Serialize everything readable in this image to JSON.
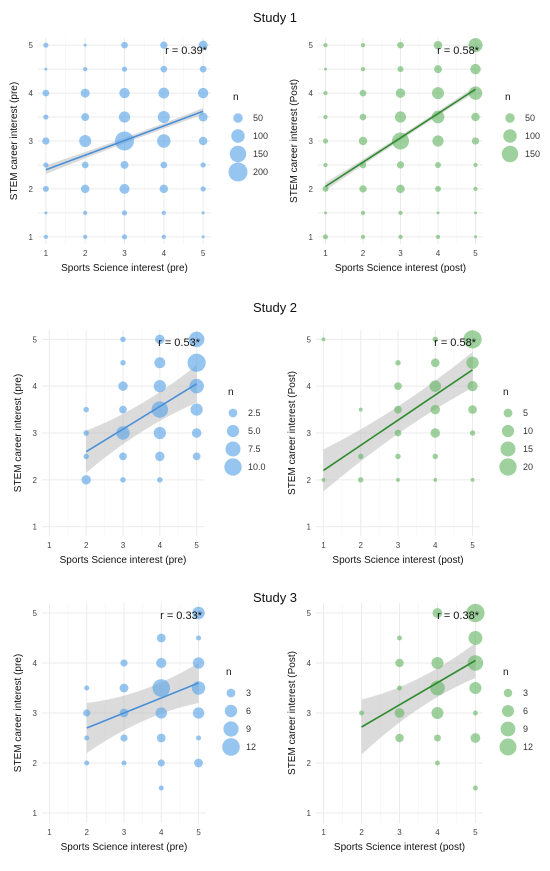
{
  "study_titles": [
    "Study 1",
    "Study 2",
    "Study 3"
  ],
  "chart_data": [
    {
      "type": "scatter",
      "study": "Study 1",
      "xlabel": "Sports Science interest (pre)",
      "ylabel": "STEM career interest (pre)",
      "annotation": "r = 0.39*",
      "color": "#5ea6e8",
      "line_color": "#4a90d9",
      "xticks": [
        1,
        2,
        3,
        4,
        5
      ],
      "yticks": [
        1,
        1.5,
        2,
        2.5,
        3,
        3.5,
        4,
        4.5,
        5
      ],
      "ytick_labels": [
        "1",
        "",
        "2",
        "",
        "3",
        "",
        "4",
        "",
        "5"
      ],
      "xlim": [
        0.8,
        5.2
      ],
      "ylim": [
        0.85,
        5.15
      ],
      "fit": {
        "x": [
          1,
          5
        ],
        "y": [
          2.4,
          3.62
        ],
        "ci": [
          0.09,
          0.07
        ]
      },
      "legend": {
        "title": "n",
        "values": [
          50,
          100,
          150,
          200
        ],
        "labels": [
          "50",
          "100",
          "150",
          "200"
        ],
        "max_n": 200
      },
      "points": [
        [
          1,
          1,
          10
        ],
        [
          1,
          1.5,
          5
        ],
        [
          1,
          2,
          20
        ],
        [
          1,
          2.5,
          15
        ],
        [
          1,
          3,
          30
        ],
        [
          1,
          3.5,
          15
        ],
        [
          1,
          4,
          25
        ],
        [
          1,
          4.5,
          5
        ],
        [
          1,
          5,
          15
        ],
        [
          2,
          1,
          10
        ],
        [
          2,
          1.5,
          10
        ],
        [
          2,
          2,
          40
        ],
        [
          2,
          2.5,
          25
        ],
        [
          2,
          3,
          80
        ],
        [
          2,
          3.5,
          35
        ],
        [
          2,
          4,
          45
        ],
        [
          2,
          4.5,
          10
        ],
        [
          2,
          5,
          5
        ],
        [
          3,
          1,
          15
        ],
        [
          3,
          1.5,
          15
        ],
        [
          3,
          2,
          55
        ],
        [
          3,
          2.5,
          35
        ],
        [
          3,
          3,
          200
        ],
        [
          3,
          3.5,
          70
        ],
        [
          3,
          4,
          60
        ],
        [
          3,
          4.5,
          15
        ],
        [
          3,
          5,
          25
        ],
        [
          4,
          1,
          10
        ],
        [
          4,
          1.5,
          10
        ],
        [
          4,
          2,
          40
        ],
        [
          4,
          2.5,
          25
        ],
        [
          4,
          3,
          100
        ],
        [
          4,
          3.5,
          80
        ],
        [
          4,
          4,
          65
        ],
        [
          4,
          4.5,
          25
        ],
        [
          4,
          5,
          30
        ],
        [
          5,
          1,
          5
        ],
        [
          5,
          1.5,
          5
        ],
        [
          5,
          2,
          15
        ],
        [
          5,
          2.5,
          15
        ],
        [
          5,
          3,
          40
        ],
        [
          5,
          3.5,
          45
        ],
        [
          5,
          4,
          60
        ],
        [
          5,
          4.5,
          25
        ],
        [
          5,
          5,
          45
        ]
      ]
    },
    {
      "type": "scatter",
      "study": "Study 1",
      "xlabel": "Sports Science interest (post)",
      "ylabel": "STEM career interest (Post)",
      "annotation": "r = 0.58*",
      "color": "#6cb86c",
      "line_color": "#2e8b2e",
      "xticks": [
        1,
        2,
        3,
        4,
        5
      ],
      "yticks": [
        1,
        1.5,
        2,
        2.5,
        3,
        3.5,
        4,
        4.5,
        5
      ],
      "ytick_labels": [
        "1",
        "",
        "2",
        "",
        "3",
        "",
        "4",
        "",
        "5"
      ],
      "xlim": [
        0.8,
        5.2
      ],
      "ylim": [
        0.85,
        5.15
      ],
      "fit": {
        "x": [
          1,
          5
        ],
        "y": [
          2.05,
          4.08
        ],
        "ci": [
          0.08,
          0.06
        ]
      },
      "legend": {
        "title": "n",
        "values": [
          50,
          100,
          150
        ],
        "labels": [
          "50",
          "100",
          "150"
        ],
        "max_n": 200
      },
      "points": [
        [
          1,
          1,
          15
        ],
        [
          1,
          1.5,
          5
        ],
        [
          1,
          2,
          20
        ],
        [
          1,
          2.5,
          10
        ],
        [
          1,
          3,
          15
        ],
        [
          1,
          3.5,
          10
        ],
        [
          1,
          4,
          10
        ],
        [
          1,
          4.5,
          5
        ],
        [
          1,
          5,
          10
        ],
        [
          2,
          1,
          10
        ],
        [
          2,
          1.5,
          10
        ],
        [
          2,
          2,
          30
        ],
        [
          2,
          2.5,
          25
        ],
        [
          2,
          3,
          40
        ],
        [
          2,
          3.5,
          25
        ],
        [
          2,
          4,
          25
        ],
        [
          2,
          4.5,
          10
        ],
        [
          2,
          5,
          10
        ],
        [
          3,
          1,
          10
        ],
        [
          3,
          1.5,
          10
        ],
        [
          3,
          2,
          40
        ],
        [
          3,
          2.5,
          30
        ],
        [
          3,
          3,
          160
        ],
        [
          3,
          3.5,
          70
        ],
        [
          3,
          4,
          50
        ],
        [
          3,
          4.5,
          20
        ],
        [
          3,
          5,
          25
        ],
        [
          4,
          1,
          10
        ],
        [
          4,
          1.5,
          5
        ],
        [
          4,
          2,
          20
        ],
        [
          4,
          2.5,
          20
        ],
        [
          4,
          3,
          70
        ],
        [
          4,
          3.5,
          90
        ],
        [
          4,
          4,
          80
        ],
        [
          4,
          4.5,
          35
        ],
        [
          4,
          5,
          40
        ],
        [
          5,
          1,
          5
        ],
        [
          5,
          1.5,
          5
        ],
        [
          5,
          2,
          10
        ],
        [
          5,
          2.5,
          10
        ],
        [
          5,
          3,
          30
        ],
        [
          5,
          3.5,
          40
        ],
        [
          5,
          4,
          100
        ],
        [
          5,
          4.5,
          60
        ],
        [
          5,
          5,
          110
        ]
      ]
    },
    {
      "type": "scatter",
      "study": "Study 2",
      "xlabel": "Sports Science interest (pre)",
      "ylabel": "STEM career interest (pre)",
      "annotation": "r = 0.53*",
      "color": "#5ea6e8",
      "line_color": "#4a90d9",
      "xticks": [
        1,
        2,
        3,
        4,
        5
      ],
      "yticks": [
        1,
        2,
        3,
        4,
        5
      ],
      "ytick_labels": [
        "1",
        "2",
        "3",
        "4",
        "5"
      ],
      "xlim": [
        0.8,
        5.2
      ],
      "ylim": [
        0.8,
        5.2
      ],
      "fit": {
        "x": [
          2,
          5
        ],
        "y": [
          2.6,
          4.05
        ],
        "ci": [
          0.45,
          0.4
        ]
      },
      "legend": {
        "title": "n",
        "values": [
          2.5,
          5.0,
          7.5,
          10.0
        ],
        "labels": [
          "2.5",
          "5.0",
          "7.5",
          "10.0"
        ],
        "max_n": 12
      },
      "points": [
        [
          2,
          2,
          3
        ],
        [
          2,
          2.5,
          1
        ],
        [
          2,
          3,
          1
        ],
        [
          2,
          3.5,
          1
        ],
        [
          3,
          2,
          1
        ],
        [
          3,
          2.5,
          2
        ],
        [
          3,
          3,
          6
        ],
        [
          3,
          3.5,
          2
        ],
        [
          3,
          4,
          3
        ],
        [
          3,
          4.5,
          1
        ],
        [
          3,
          5,
          1
        ],
        [
          4,
          2,
          1
        ],
        [
          4,
          2.5,
          3
        ],
        [
          4,
          3,
          5
        ],
        [
          4,
          3.5,
          9
        ],
        [
          4,
          4,
          5
        ],
        [
          4,
          4.5,
          4
        ],
        [
          4,
          5,
          3
        ],
        [
          5,
          2.5,
          2
        ],
        [
          5,
          3,
          3
        ],
        [
          5,
          3.5,
          5
        ],
        [
          5,
          4,
          7
        ],
        [
          5,
          4.5,
          11
        ],
        [
          5,
          5,
          8
        ]
      ]
    },
    {
      "type": "scatter",
      "study": "Study 2",
      "xlabel": "Sports Science interest (post)",
      "ylabel": "STEM career interest (Post)",
      "annotation": "r = 0.58*",
      "color": "#6cb86c",
      "line_color": "#2e8b2e",
      "xticks": [
        1,
        2,
        3,
        4,
        5
      ],
      "yticks": [
        1,
        2,
        3,
        4,
        5
      ],
      "ytick_labels": [
        "1",
        "2",
        "3",
        "4",
        "5"
      ],
      "xlim": [
        0.8,
        5.2
      ],
      "ylim": [
        0.8,
        5.2
      ],
      "fit": {
        "x": [
          1,
          5
        ],
        "y": [
          2.2,
          4.35
        ],
        "ci": [
          0.45,
          0.38
        ]
      },
      "legend": {
        "title": "n",
        "values": [
          5,
          10,
          15,
          20
        ],
        "labels": [
          "5",
          "10",
          "15",
          "20"
        ],
        "max_n": 24
      },
      "points": [
        [
          1,
          2,
          1
        ],
        [
          1,
          5,
          1
        ],
        [
          2,
          2,
          2
        ],
        [
          2,
          2.5,
          2
        ],
        [
          2,
          3.5,
          1
        ],
        [
          3,
          2,
          1
        ],
        [
          3,
          2.5,
          2
        ],
        [
          3,
          3,
          3
        ],
        [
          3,
          3.5,
          4
        ],
        [
          3,
          4,
          4
        ],
        [
          3,
          4.5,
          2
        ],
        [
          4,
          2,
          1
        ],
        [
          4,
          2.5,
          2
        ],
        [
          4,
          3,
          6
        ],
        [
          4,
          3.5,
          6
        ],
        [
          4,
          4,
          9
        ],
        [
          4,
          4.5,
          5
        ],
        [
          4,
          5,
          2
        ],
        [
          5,
          2,
          1
        ],
        [
          5,
          3,
          2
        ],
        [
          5,
          3.5,
          5
        ],
        [
          5,
          4,
          7
        ],
        [
          5,
          4.5,
          10
        ],
        [
          5,
          5,
          22
        ]
      ]
    },
    {
      "type": "scatter",
      "study": "Study 3",
      "xlabel": "Sports Science interest (pre)",
      "ylabel": "STEM career interest (pre)",
      "annotation": "r = 0.33*",
      "color": "#5ea6e8",
      "line_color": "#4a90d9",
      "xticks": [
        1,
        2,
        3,
        4,
        5
      ],
      "yticks": [
        1,
        2,
        3,
        4,
        5
      ],
      "ytick_labels": [
        "1",
        "2",
        "3",
        "4",
        "5"
      ],
      "xlim": [
        0.8,
        5.2
      ],
      "ylim": [
        0.8,
        5.2
      ],
      "fit": {
        "x": [
          2,
          5
        ],
        "y": [
          2.7,
          3.6
        ],
        "ci": [
          0.5,
          0.4
        ]
      },
      "legend": {
        "title": "n",
        "values": [
          3,
          6,
          9,
          12
        ],
        "labels": [
          "3",
          "6",
          "9",
          "12"
        ],
        "max_n": 14
      },
      "points": [
        [
          2,
          2,
          1
        ],
        [
          2,
          2.5,
          1
        ],
        [
          2,
          3,
          2
        ],
        [
          2,
          3.5,
          1
        ],
        [
          3,
          2,
          1
        ],
        [
          3,
          2.5,
          2
        ],
        [
          3,
          3,
          3
        ],
        [
          3,
          3.5,
          3
        ],
        [
          3,
          4,
          2
        ],
        [
          4,
          1.5,
          1
        ],
        [
          4,
          2,
          2
        ],
        [
          4,
          2.5,
          3
        ],
        [
          4,
          3,
          5
        ],
        [
          4,
          3.5,
          12
        ],
        [
          4,
          4,
          4
        ],
        [
          4,
          4.5,
          3
        ],
        [
          5,
          2,
          3
        ],
        [
          5,
          2.5,
          1
        ],
        [
          5,
          3,
          5
        ],
        [
          5,
          3.5,
          7
        ],
        [
          5,
          4,
          5
        ],
        [
          5,
          4.5,
          1
        ],
        [
          5,
          5,
          6
        ]
      ]
    },
    {
      "type": "scatter",
      "study": "Study 3",
      "xlabel": "Sports Science interest (post)",
      "ylabel": "STEM career interest (Post)",
      "annotation": "r = 0.38*",
      "color": "#6cb86c",
      "line_color": "#2e8b2e",
      "xticks": [
        1,
        2,
        3,
        4,
        5
      ],
      "yticks": [
        1,
        2,
        3,
        4,
        5
      ],
      "ytick_labels": [
        "1",
        "2",
        "3",
        "4",
        "5"
      ],
      "xlim": [
        0.8,
        5.2
      ],
      "ylim": [
        0.8,
        5.2
      ],
      "fit": {
        "x": [
          2,
          5
        ],
        "y": [
          2.72,
          4.05
        ],
        "ci": [
          0.55,
          0.35
        ]
      },
      "legend": {
        "title": "n",
        "values": [
          3,
          6,
          9,
          12
        ],
        "labels": [
          "3",
          "6",
          "9",
          "12"
        ],
        "max_n": 15
      },
      "points": [
        [
          2,
          3,
          1
        ],
        [
          3,
          2.5,
          3
        ],
        [
          3,
          3,
          4
        ],
        [
          3,
          3.5,
          1
        ],
        [
          3,
          4,
          3
        ],
        [
          3,
          4.5,
          1
        ],
        [
          4,
          2,
          1
        ],
        [
          4,
          2.5,
          2
        ],
        [
          4,
          3,
          6
        ],
        [
          4,
          3.5,
          9
        ],
        [
          4,
          4,
          6
        ],
        [
          4,
          5,
          4
        ],
        [
          5,
          1.5,
          1
        ],
        [
          5,
          2.5,
          4
        ],
        [
          5,
          3,
          1
        ],
        [
          5,
          3.5,
          6
        ],
        [
          5,
          4,
          10
        ],
        [
          5,
          4.5,
          8
        ],
        [
          5,
          5,
          14
        ]
      ]
    }
  ]
}
